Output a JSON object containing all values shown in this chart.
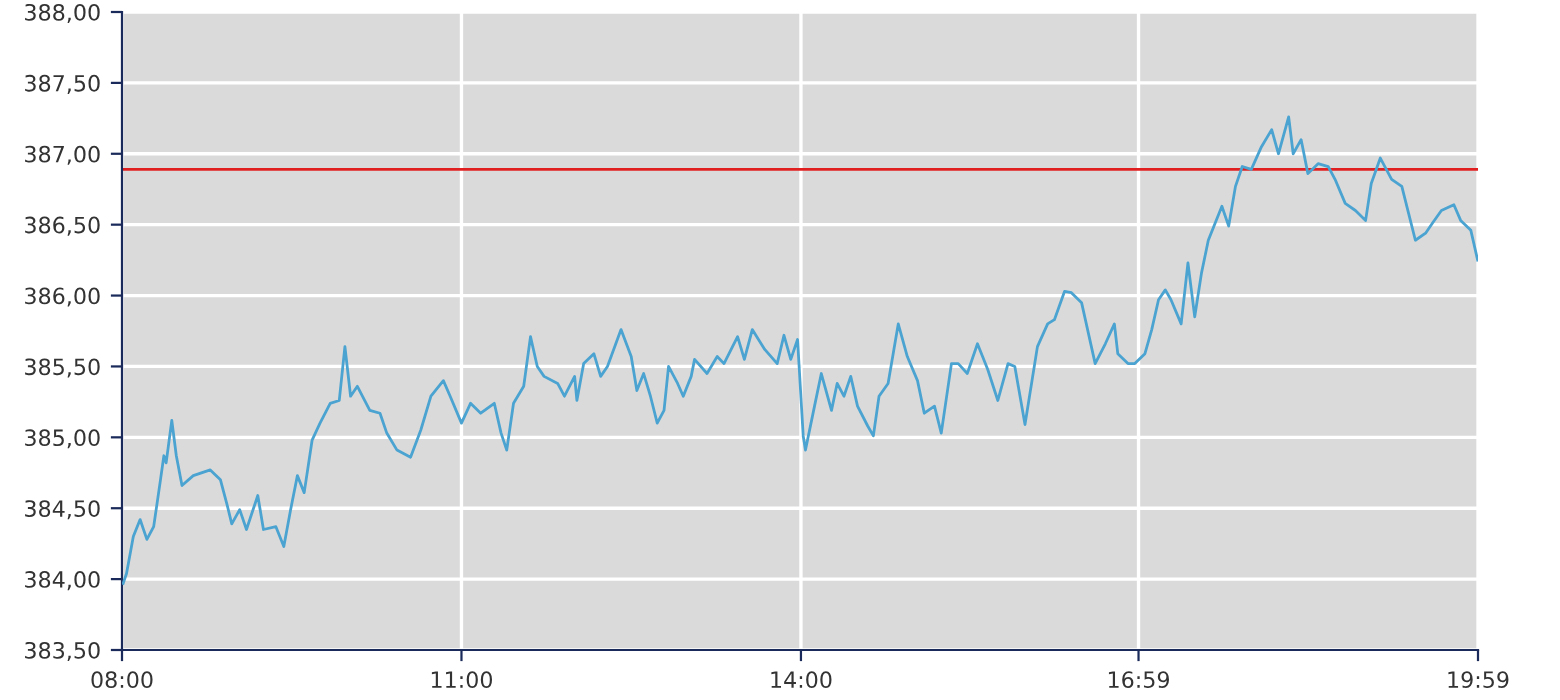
{
  "chart_data": {
    "type": "line",
    "x": [
      8.01,
      8.04,
      8.1,
      8.16,
      8.22,
      8.28,
      8.34,
      8.37,
      8.39,
      8.44,
      8.48,
      8.53,
      8.63,
      8.78,
      8.87,
      8.93,
      8.97,
      9.04,
      9.1,
      9.2,
      9.25,
      9.36,
      9.43,
      9.49,
      9.55,
      9.61,
      9.68,
      9.75,
      9.84,
      9.92,
      9.97,
      10.02,
      10.08,
      10.19,
      10.28,
      10.34,
      10.43,
      10.55,
      10.64,
      10.73,
      10.84,
      10.9,
      11.0,
      11.08,
      11.17,
      11.29,
      11.35,
      11.4,
      11.46,
      11.55,
      11.61,
      11.67,
      11.73,
      11.85,
      11.91,
      12.0,
      12.02,
      12.08,
      12.17,
      12.23,
      12.29,
      12.41,
      12.5,
      12.55,
      12.61,
      12.67,
      12.73,
      12.79,
      12.83,
      12.91,
      12.96,
      13.03,
      13.06,
      13.17,
      13.26,
      13.32,
      13.44,
      13.5,
      13.57,
      13.68,
      13.79,
      13.85,
      13.91,
      13.97,
      14.02,
      14.04,
      14.12,
      14.18,
      14.27,
      14.32,
      14.38,
      14.44,
      14.5,
      14.59,
      14.64,
      14.69,
      14.77,
      14.86,
      14.94,
      15.03,
      15.09,
      15.18,
      15.24,
      15.33,
      15.39,
      15.47,
      15.56,
      15.65,
      15.74,
      15.83,
      15.89,
      15.98,
      16.09,
      16.18,
      16.24,
      16.33,
      16.39,
      16.48,
      16.6,
      16.69,
      16.77,
      16.8,
      16.89,
      16.95,
      17.04,
      17.1,
      17.16,
      17.22,
      17.27,
      17.36,
      17.42,
      17.48,
      17.54,
      17.6,
      17.66,
      17.72,
      17.78,
      17.84,
      17.9,
      17.98,
      18.07,
      18.16,
      18.22,
      18.31,
      18.35,
      18.42,
      18.48,
      18.57,
      18.66,
      18.72,
      18.81,
      18.9,
      18.99,
      19.04,
      19.12,
      19.22,
      19.31,
      19.37,
      19.43,
      19.52,
      19.58,
      19.66,
      19.77,
      19.83,
      19.92,
      19.98
    ],
    "series": [
      {
        "color": "#4aa3d0",
        "values": [
          383.97,
          384.04,
          384.3,
          384.42,
          384.28,
          384.37,
          384.7,
          384.87,
          384.82,
          385.12,
          384.87,
          384.66,
          384.73,
          384.77,
          384.7,
          384.52,
          384.39,
          384.49,
          384.35,
          384.59,
          384.35,
          384.37,
          384.23,
          384.49,
          384.73,
          384.61,
          384.98,
          385.1,
          385.24,
          385.26,
          385.64,
          385.29,
          385.36,
          385.19,
          385.17,
          385.03,
          384.91,
          384.86,
          385.05,
          385.29,
          385.4,
          385.29,
          385.1,
          385.24,
          385.17,
          385.24,
          385.03,
          384.91,
          385.24,
          385.36,
          385.71,
          385.5,
          385.43,
          385.38,
          385.29,
          385.43,
          385.26,
          385.52,
          385.59,
          385.43,
          385.5,
          385.76,
          385.57,
          385.33,
          385.45,
          385.29,
          385.1,
          385.19,
          385.5,
          385.38,
          385.29,
          385.43,
          385.55,
          385.45,
          385.57,
          385.52,
          385.71,
          385.55,
          385.76,
          385.62,
          385.52,
          385.72,
          385.55,
          385.69,
          385.01,
          384.91,
          385.22,
          385.45,
          385.19,
          385.38,
          385.29,
          385.43,
          385.22,
          385.08,
          385.01,
          385.29,
          385.38,
          385.8,
          385.57,
          385.4,
          385.17,
          385.22,
          385.03,
          385.52,
          385.52,
          385.45,
          385.66,
          385.48,
          385.26,
          385.52,
          385.5,
          385.09,
          385.64,
          385.8,
          385.83,
          386.03,
          386.02,
          385.95,
          385.52,
          385.66,
          385.8,
          385.59,
          385.52,
          385.52,
          385.59,
          385.76,
          385.97,
          386.04,
          385.97,
          385.8,
          386.23,
          385.85,
          386.16,
          386.39,
          386.51,
          386.63,
          386.49,
          386.77,
          386.91,
          386.89,
          387.05,
          387.17,
          387.0,
          387.26,
          387.0,
          387.1,
          386.86,
          386.93,
          386.91,
          386.82,
          386.65,
          386.6,
          386.53,
          386.79,
          386.97,
          386.82,
          386.77,
          386.58,
          386.39,
          386.44,
          386.51,
          386.6,
          386.64,
          386.53,
          386.46,
          386.25
        ]
      }
    ],
    "xlim": [
      8,
      19.9833
    ],
    "xticks": [
      {
        "value": 8,
        "label": "08:00"
      },
      {
        "value": 11,
        "label": "11:00"
      },
      {
        "value": 14,
        "label": "14:00"
      },
      {
        "value": 16.9833,
        "label": "16:59"
      },
      {
        "value": 19.9833,
        "label": "19:59"
      }
    ],
    "ylim": [
      383.5,
      388
    ],
    "yticks": [
      {
        "value": 383.5,
        "label": "383,50"
      },
      {
        "value": 384,
        "label": "384,00"
      },
      {
        "value": 384.5,
        "label": "384,50"
      },
      {
        "value": 385,
        "label": "385,00"
      },
      {
        "value": 385.5,
        "label": "385,50"
      },
      {
        "value": 386,
        "label": "386,00"
      },
      {
        "value": 386.5,
        "label": "386,50"
      },
      {
        "value": 387,
        "label": "387,00"
      },
      {
        "value": 387.5,
        "label": "387,50"
      },
      {
        "value": 388,
        "label": "388,00"
      }
    ],
    "ref_lines": [
      {
        "axis": "y",
        "value": 386.89,
        "color": "#e02020"
      }
    ],
    "grid": true,
    "legend": false
  }
}
